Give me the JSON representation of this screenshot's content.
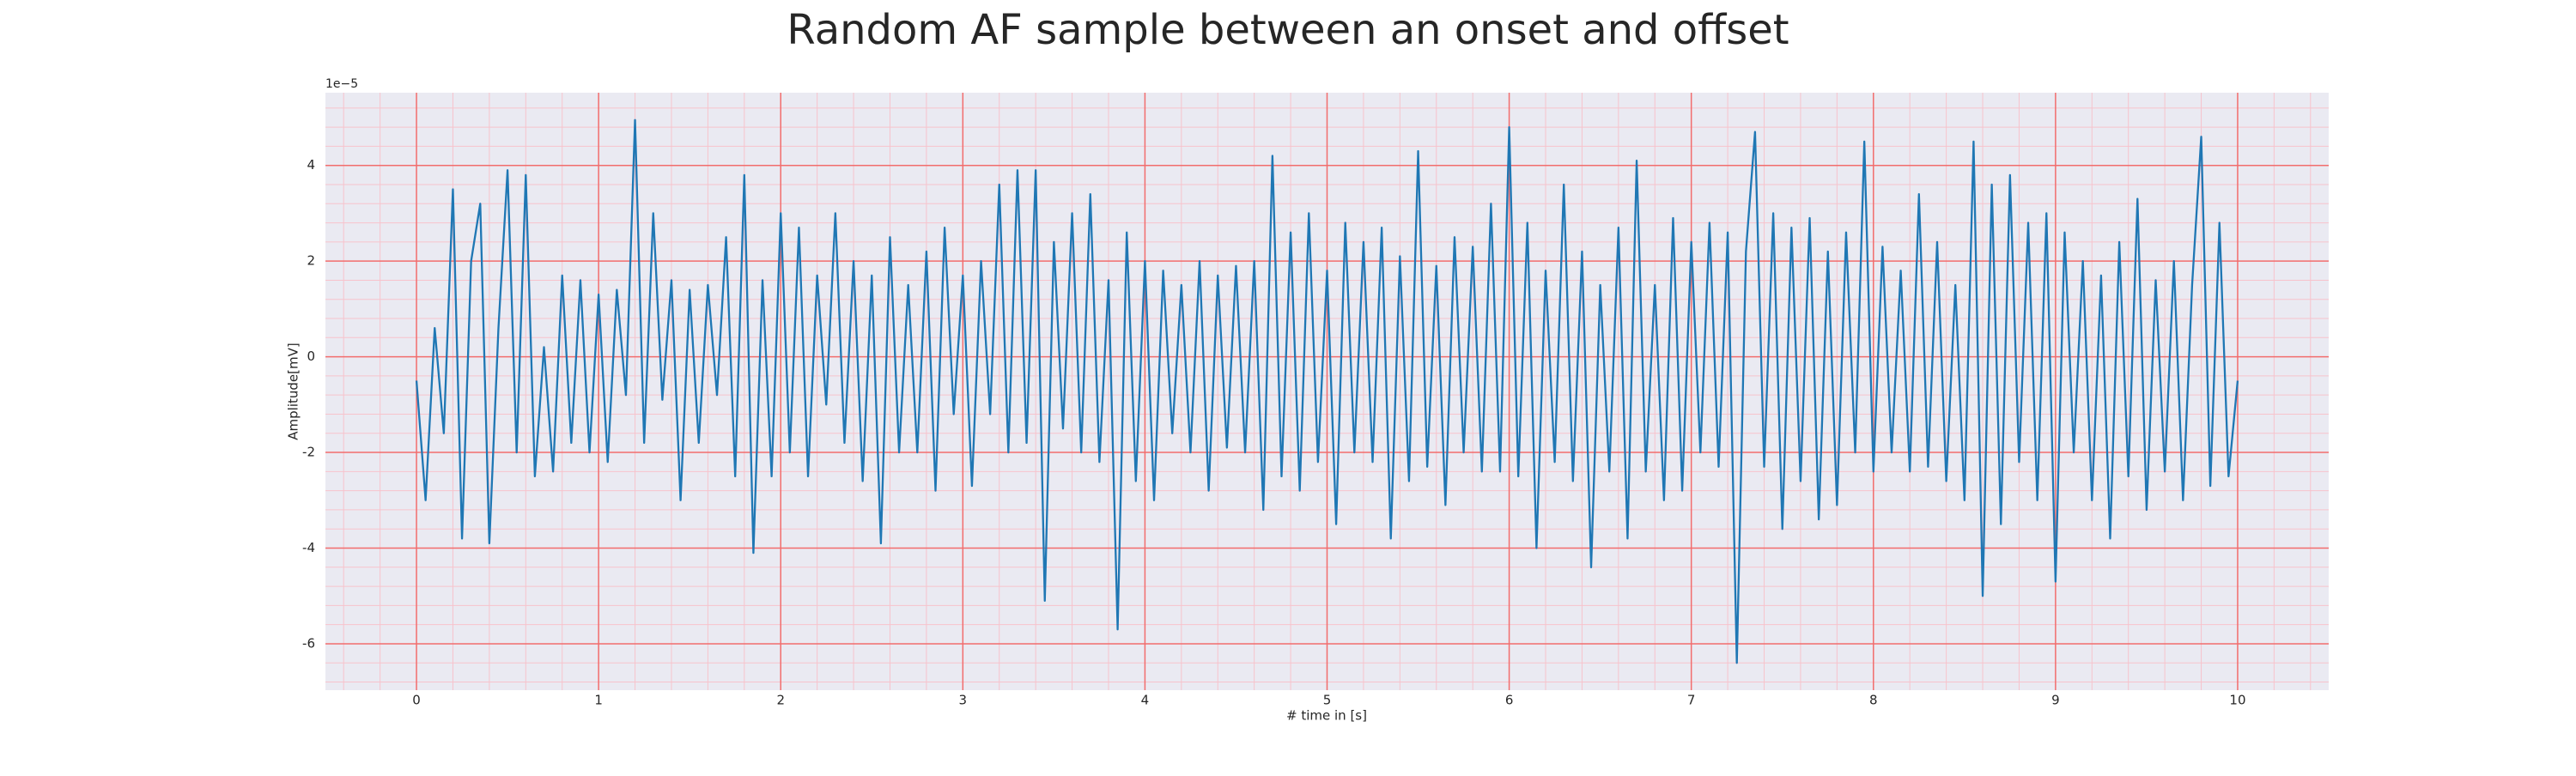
{
  "chart_data": {
    "type": "line",
    "title": "Random AF sample between an onset and offset",
    "xlabel": "# time in [s]",
    "ylabel": "Amplitude[mV]",
    "y_offset_label": "1e−5",
    "color": "#1f77b4",
    "background": "#eaeaf2",
    "grid": true,
    "major_grid_color": "#f26d6d",
    "minor_grid_color": "#f7c3cc",
    "xlim": [
      -0.5,
      10.5
    ],
    "ylim": [
      -6.97,
      5.52
    ],
    "xticks": [
      0,
      1,
      2,
      3,
      4,
      5,
      6,
      7,
      8,
      9,
      10
    ],
    "yticks": [
      -6,
      -4,
      -2,
      0,
      2,
      4
    ],
    "xminorticks": [
      -0.4,
      -0.2,
      0.2,
      0.4,
      0.6,
      0.8,
      1.2,
      1.4,
      1.6,
      1.8,
      2.2,
      2.4,
      2.6,
      2.8,
      3.2,
      3.4,
      3.6,
      3.8,
      4.2,
      4.4,
      4.6,
      4.8,
      5.2,
      5.4,
      5.6,
      5.8,
      6.2,
      6.4,
      6.6,
      6.8,
      7.2,
      7.4,
      7.6,
      7.8,
      8.2,
      8.4,
      8.6,
      8.8,
      9.2,
      9.4,
      9.6,
      9.8,
      10.2,
      10.4
    ],
    "yminorticks": [
      -6.8,
      -6.4,
      -5.6,
      -5.2,
      -4.8,
      -4.4,
      -3.6,
      -3.2,
      -2.8,
      -2.4,
      -1.6,
      -1.2,
      -0.8,
      -0.4,
      0.4,
      0.8,
      1.2,
      1.6,
      2.4,
      2.8,
      3.2,
      3.6,
      4.4,
      4.8,
      5.2
    ],
    "x": [
      0,
      0.05,
      0.1,
      0.15,
      0.2,
      0.25,
      0.3,
      0.35,
      0.4,
      0.45,
      0.5,
      0.55,
      0.6,
      0.65,
      0.7,
      0.75,
      0.8,
      0.85,
      0.9,
      0.95,
      1,
      1.05,
      1.1,
      1.15,
      1.2,
      1.25,
      1.3,
      1.35,
      1.4,
      1.45,
      1.5,
      1.55,
      1.6,
      1.65,
      1.7,
      1.75,
      1.8,
      1.85,
      1.9,
      1.95,
      2,
      2.05,
      2.1,
      2.15,
      2.2,
      2.25,
      2.3,
      2.35,
      2.4,
      2.45,
      2.5,
      2.55,
      2.6,
      2.65,
      2.7,
      2.75,
      2.8,
      2.85,
      2.9,
      2.95,
      3,
      3.05,
      3.1,
      3.15,
      3.2,
      3.25,
      3.3,
      3.35,
      3.4,
      3.45,
      3.5,
      3.55,
      3.6,
      3.65,
      3.7,
      3.75,
      3.8,
      3.85,
      3.9,
      3.95,
      4,
      4.05,
      4.1,
      4.15,
      4.2,
      4.25,
      4.3,
      4.35,
      4.4,
      4.45,
      4.5,
      4.55,
      4.6,
      4.65,
      4.7,
      4.75,
      4.8,
      4.85,
      4.9,
      4.95,
      5,
      5.05,
      5.1,
      5.15,
      5.2,
      5.25,
      5.3,
      5.35,
      5.4,
      5.45,
      5.5,
      5.55,
      5.6,
      5.65,
      5.7,
      5.75,
      5.8,
      5.85,
      5.9,
      5.95,
      6,
      6.05,
      6.1,
      6.15,
      6.2,
      6.25,
      6.3,
      6.35,
      6.4,
      6.45,
      6.5,
      6.55,
      6.6,
      6.65,
      6.7,
      6.75,
      6.8,
      6.85,
      6.9,
      6.95,
      7,
      7.05,
      7.1,
      7.15,
      7.2,
      7.25,
      7.3,
      7.35,
      7.4,
      7.45,
      7.5,
      7.55,
      7.6,
      7.65,
      7.7,
      7.75,
      7.8,
      7.85,
      7.9,
      7.95,
      8,
      8.05,
      8.1,
      8.15,
      8.2,
      8.25,
      8.3,
      8.35,
      8.4,
      8.45,
      8.5,
      8.55,
      8.6,
      8.65,
      8.7,
      8.75,
      8.8,
      8.85,
      8.9,
      8.95,
      9,
      9.05,
      9.1,
      9.15,
      9.2,
      9.25,
      9.3,
      9.35,
      9.4,
      9.45,
      9.5,
      9.55,
      9.6,
      9.65,
      9.7,
      9.75,
      9.8,
      9.85,
      9.9,
      9.95,
      10
    ],
    "values": [
      -0.5,
      -3.0,
      0.6,
      -1.6,
      3.5,
      -3.8,
      2.0,
      3.2,
      -3.9,
      0.6,
      3.9,
      -2.0,
      3.8,
      -2.5,
      0.2,
      -2.4,
      1.7,
      -1.8,
      1.6,
      -2.0,
      1.3,
      -2.2,
      1.4,
      -0.8,
      4.95,
      -1.8,
      3.0,
      -0.9,
      1.6,
      -3.0,
      1.4,
      -1.8,
      1.5,
      -0.8,
      2.5,
      -2.5,
      3.8,
      -4.1,
      1.6,
      -2.5,
      3.0,
      -2.0,
      2.7,
      -2.5,
      1.7,
      -1.0,
      3.0,
      -1.8,
      2.0,
      -2.6,
      1.7,
      -3.9,
      2.5,
      -2.0,
      1.5,
      -2.0,
      2.2,
      -2.8,
      2.7,
      -1.2,
      1.7,
      -2.7,
      2.0,
      -1.2,
      3.6,
      -2.0,
      3.9,
      -1.8,
      3.9,
      -5.1,
      2.4,
      -1.5,
      3.0,
      -2.0,
      3.4,
      -2.2,
      1.6,
      -5.7,
      2.6,
      -2.6,
      2.0,
      -3.0,
      1.8,
      -1.6,
      1.5,
      -2.0,
      2.0,
      -2.8,
      1.7,
      -1.9,
      1.9,
      -2.0,
      2.0,
      -3.2,
      4.2,
      -2.5,
      2.6,
      -2.8,
      3.0,
      -2.2,
      1.8,
      -3.5,
      2.8,
      -2.0,
      2.4,
      -2.2,
      2.7,
      -3.8,
      2.1,
      -2.6,
      4.3,
      -2.3,
      1.9,
      -3.1,
      2.5,
      -2.0,
      2.3,
      -2.4,
      3.2,
      -2.4,
      4.8,
      -2.5,
      2.8,
      -4.0,
      1.8,
      -2.2,
      3.6,
      -2.6,
      2.2,
      -4.4,
      1.5,
      -2.4,
      2.7,
      -3.8,
      4.1,
      -2.4,
      1.5,
      -3.0,
      2.9,
      -2.8,
      2.4,
      -2.0,
      2.8,
      -2.3,
      2.6,
      -6.4,
      2.2,
      4.7,
      -2.3,
      3.0,
      -3.6,
      2.7,
      -2.6,
      2.9,
      -3.4,
      2.2,
      -3.1,
      2.6,
      -2.0,
      4.5,
      -2.4,
      2.3,
      -2.0,
      1.8,
      -2.4,
      3.4,
      -2.3,
      2.4,
      -2.6,
      1.5,
      -3.0,
      4.5,
      -5.0,
      3.6,
      -3.5,
      3.8,
      -2.2,
      2.8,
      -3.0,
      3.0,
      -4.7,
      2.6,
      -2.0,
      2.0,
      -3.0,
      1.7,
      -3.8,
      2.4,
      -2.5,
      3.3,
      -3.2,
      1.6,
      -2.4,
      2.0,
      -3.0,
      1.5,
      4.6,
      -2.7,
      2.8,
      -2.5,
      -0.5
    ]
  }
}
